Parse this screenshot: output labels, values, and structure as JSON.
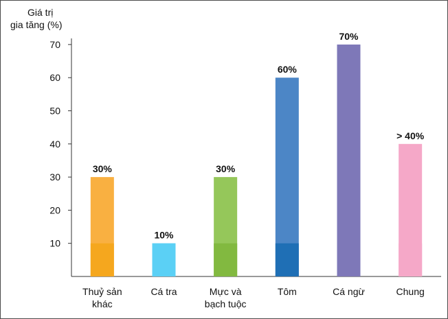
{
  "chart_data": {
    "type": "bar",
    "ylabel_lines": [
      "Giá trị",
      "gia tăng (%)"
    ],
    "yticks": [
      10,
      20,
      30,
      40,
      50,
      60,
      70
    ],
    "ylim": [
      0,
      70
    ],
    "grid": false,
    "categories": [
      {
        "label_lines": [
          "Thuỷ sản",
          "khác"
        ],
        "value": 30,
        "label": "30%",
        "color": "#F9B041",
        "base_color": "#F5A71E",
        "base_value": 10
      },
      {
        "label_lines": [
          "Cá tra"
        ],
        "value": 10,
        "label": "10%",
        "color": "#5BD0F5",
        "base_color": "#5BD0F5",
        "base_value": 10
      },
      {
        "label_lines": [
          "Mực và",
          "bạch tuộc"
        ],
        "value": 30,
        "label": "30%",
        "color": "#95C75A",
        "base_color": "#82B940",
        "base_value": 10
      },
      {
        "label_lines": [
          "Tôm"
        ],
        "value": 60,
        "label": "60%",
        "color": "#4C86C6",
        "base_color": "#1F6FB5",
        "base_value": 10
      },
      {
        "label_lines": [
          "Cá ngừ"
        ],
        "value": 70,
        "label": "70%",
        "color": "#7E78B8",
        "base_color": "#7E78B8",
        "base_value": 10
      },
      {
        "label_lines": [
          "Chung"
        ],
        "value": 40,
        "label": "> 40%",
        "color": "#F5A8C8",
        "base_color": "#F5A8C8",
        "base_value": 10
      }
    ]
  }
}
